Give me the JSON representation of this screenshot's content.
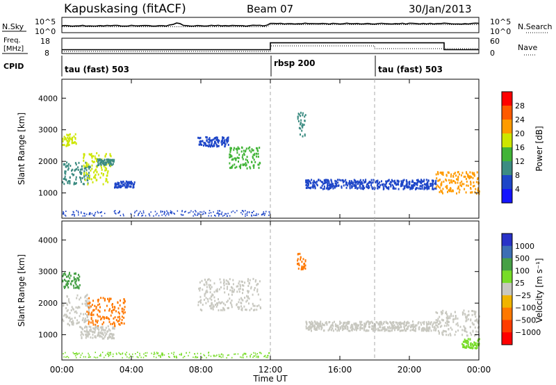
{
  "header": {
    "station": "Kapuskasing (fitACF)",
    "beam": "Beam 07",
    "date": "30/Jan/2013"
  },
  "top_panels": {
    "nsky_label": "N.Sky",
    "nsky_ticks": [
      "10^5",
      "10^0"
    ],
    "nsearch_label": "N.Search",
    "nsearch_ticks": [
      "10^5",
      "10^0"
    ],
    "freq_label": "Freq.",
    "freq_unit": "[MHz]",
    "freq_ticks": [
      "18",
      "8"
    ],
    "nave_label": "Nave",
    "nave_ticks": [
      "60",
      "0"
    ],
    "cpid_label": "CPID",
    "cpid_segments": [
      {
        "label": "tau (fast) 503",
        "start": 0
      },
      {
        "label": "rbsp 200",
        "start": 12
      },
      {
        "label": "tau (fast) 503",
        "start": 18
      }
    ]
  },
  "power_panel": {
    "ylabel": "Slant Range [km]",
    "colorbar_label": "Power [dB]",
    "colorbar_ticks": [
      "28",
      "24",
      "20",
      "16",
      "12",
      "8",
      "4"
    ],
    "colorbar_colors": [
      "#ff0000",
      "#ff5a00",
      "#ff9b00",
      "#cde600",
      "#41b437",
      "#3c8c82",
      "#1e46c8",
      "#1414ff"
    ]
  },
  "velocity_panel": {
    "ylabel": "Slant Range [km]",
    "colorbar_label": "Velocity [m s⁻¹]",
    "colorbar_ticks": [
      "1000",
      "500",
      "100",
      "25",
      "−25",
      "−100",
      "−500",
      "−1000"
    ],
    "colorbar_colors": [
      "#2832c8",
      "#3c6eb4",
      "#46a046",
      "#78dc28",
      "#c8c8c0",
      "#f0b400",
      "#ff7800",
      "#ff3c00",
      "#ff0000"
    ]
  },
  "chart_data": {
    "type": "heatmap",
    "xlabel": "Time UT",
    "ylabel": "Slant Range [km]",
    "xlim": [
      0,
      24
    ],
    "ylim": [
      200,
      4600
    ],
    "x_ticks": [
      "00:00",
      "04:00",
      "08:00",
      "12:00",
      "16:00",
      "20:00",
      "00:00"
    ],
    "y_ticks": [
      1000,
      2000,
      3000,
      4000
    ],
    "cpid_change_times": [
      12,
      18
    ],
    "freq_mhz_segments": [
      {
        "start": 0,
        "end": 12,
        "value": 10.5
      },
      {
        "start": 12,
        "end": 22,
        "value": 15
      },
      {
        "start": 22,
        "end": 24,
        "value": 10.5
      }
    ],
    "power_patches": [
      {
        "t0": 0.0,
        "t1": 0.8,
        "r0": 2500,
        "r1": 2900,
        "db": 18
      },
      {
        "t0": 0.0,
        "t1": 1.6,
        "r0": 1300,
        "r1": 2000,
        "db": 10
      },
      {
        "t0": 1.2,
        "t1": 2.8,
        "r0": 1300,
        "r1": 2300,
        "db": 20
      },
      {
        "t0": 2.0,
        "t1": 3.0,
        "r0": 1900,
        "r1": 2100,
        "db": 12
      },
      {
        "t0": 3.0,
        "t1": 4.2,
        "r0": 1200,
        "r1": 1400,
        "db": 8
      },
      {
        "t0": 7.8,
        "t1": 9.6,
        "r0": 2500,
        "r1": 2800,
        "db": 8
      },
      {
        "t0": 9.6,
        "t1": 11.4,
        "r0": 1800,
        "r1": 2500,
        "db": 14
      },
      {
        "t0": 14.0,
        "t1": 17.8,
        "r0": 1150,
        "r1": 1450,
        "db": 6
      },
      {
        "t0": 17.8,
        "t1": 21.5,
        "r0": 1150,
        "r1": 1450,
        "db": 6
      },
      {
        "t0": 21.5,
        "t1": 24.0,
        "r0": 1000,
        "r1": 1700,
        "db": 22
      },
      {
        "t0": 13.5,
        "t1": 14.0,
        "r0": 2800,
        "r1": 3600,
        "db": 10
      }
    ],
    "velocity_patches": [
      {
        "t0": 0.0,
        "t1": 1.0,
        "r0": 2500,
        "r1": 3000,
        "vel": 300
      },
      {
        "t0": 0.0,
        "t1": 1.6,
        "r0": 1300,
        "r1": 2300,
        "vel": 0
      },
      {
        "t0": 1.4,
        "t1": 3.6,
        "r0": 1300,
        "r1": 2200,
        "vel": -300
      },
      {
        "t0": 1.0,
        "t1": 3.0,
        "r0": 900,
        "r1": 1300,
        "vel": 0
      },
      {
        "t0": 7.8,
        "t1": 11.4,
        "r0": 1800,
        "r1": 2800,
        "vel": 0
      },
      {
        "t0": 14.0,
        "t1": 21.5,
        "r0": 1150,
        "r1": 1450,
        "vel": 0
      },
      {
        "t0": 21.5,
        "t1": 24.0,
        "r0": 1000,
        "r1": 1800,
        "vel": 0
      },
      {
        "t0": 23.0,
        "t1": 24.0,
        "r0": 600,
        "r1": 900,
        "vel": 100
      },
      {
        "t0": 13.5,
        "t1": 14.0,
        "r0": 3100,
        "r1": 3600,
        "vel": -300
      }
    ]
  }
}
